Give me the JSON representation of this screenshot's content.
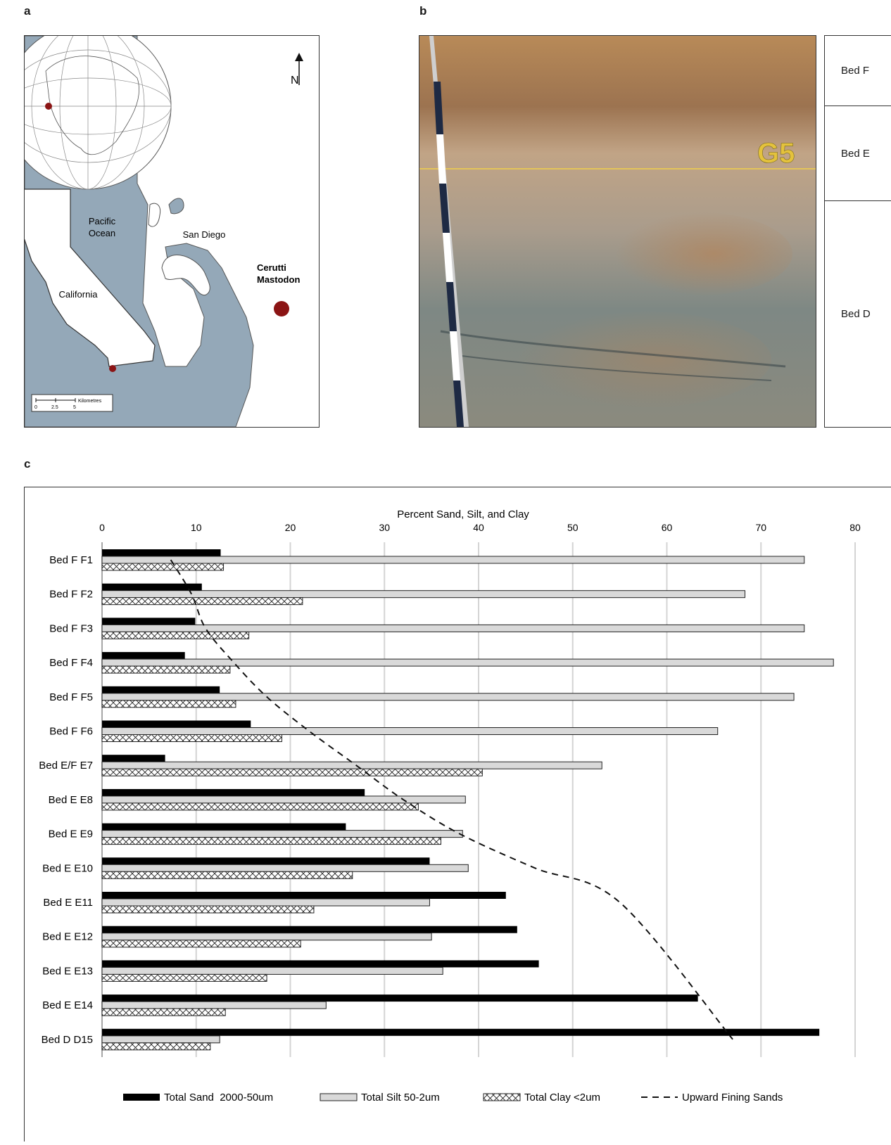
{
  "panels": {
    "a": "a",
    "b": "b",
    "c": "c"
  },
  "map": {
    "north_label": "N",
    "labels": {
      "pacific": [
        "Pacific",
        "Ocean"
      ],
      "san_diego": "San Diego",
      "california": "California",
      "site": [
        "Cerutti",
        "Mastodon"
      ]
    },
    "scale": {
      "unit": "Kilometres",
      "ticks": [
        "0",
        "2.5",
        "5"
      ]
    },
    "colors": {
      "water": "#94a8b8",
      "land": "#ffffff",
      "marker": "#8b1414"
    }
  },
  "photo": {
    "label": "G5"
  },
  "beds": [
    "Bed F",
    "Bed E",
    "Bed D"
  ],
  "chart_data": {
    "type": "bar",
    "orientation": "horizontal",
    "title": "Percent Sand, Silt, and Clay",
    "xlim": [
      0,
      80
    ],
    "xticks": [
      "0",
      "10",
      "20",
      "30",
      "40",
      "50",
      "60",
      "70",
      "80"
    ],
    "grid": true,
    "legend_position": "bottom",
    "categories": [
      "Bed F F1",
      "Bed F F2",
      "Bed F F3",
      "Bed F F4",
      "Bed F F5",
      "Bed F F6",
      "Bed E/F E7",
      "Bed E E8",
      "Bed E E9",
      "Bed E E10",
      "Bed E E11",
      "Bed E E12",
      "Bed E E13",
      "Bed E E14",
      "Bed D D15"
    ],
    "series": [
      {
        "name": "Total Sand  2000-50um",
        "color": "#000000",
        "values": [
          12.6,
          10.6,
          9.9,
          8.8,
          12.5,
          15.8,
          6.7,
          27.9,
          25.9,
          34.8,
          42.9,
          44.1,
          46.4,
          63.3,
          76.2
        ]
      },
      {
        "name": "Total Silt 50-2um",
        "color": "#d9d9d9",
        "values": [
          74.6,
          68.3,
          74.6,
          77.7,
          73.5,
          65.4,
          53.1,
          38.6,
          38.3,
          38.9,
          34.8,
          35.0,
          36.2,
          23.8,
          12.5
        ]
      },
      {
        "name": "Total Clay <2um",
        "pattern": "crosshatch",
        "values": [
          12.9,
          21.3,
          15.6,
          13.6,
          14.2,
          19.1,
          40.4,
          33.6,
          36.0,
          26.6,
          22.5,
          21.1,
          17.5,
          13.1,
          11.5
        ]
      }
    ],
    "trend": {
      "name": "Upward Fining Sands",
      "style": "dashed",
      "x": [
        7.3,
        9.5,
        11.0,
        14.0,
        17.5,
        22.0,
        27.0,
        32.0,
        38.0,
        46.0,
        55.0,
        67.0
      ],
      "y": [
        "Bed F F1",
        "Bed F F2",
        "Bed F F3",
        "Bed F F4",
        "Bed F F5",
        "Bed F F6",
        "Bed E/F E7",
        "Bed E E8",
        "Bed E E9",
        "Bed E E10",
        "Bed E E11",
        "Bed D D15"
      ]
    }
  }
}
